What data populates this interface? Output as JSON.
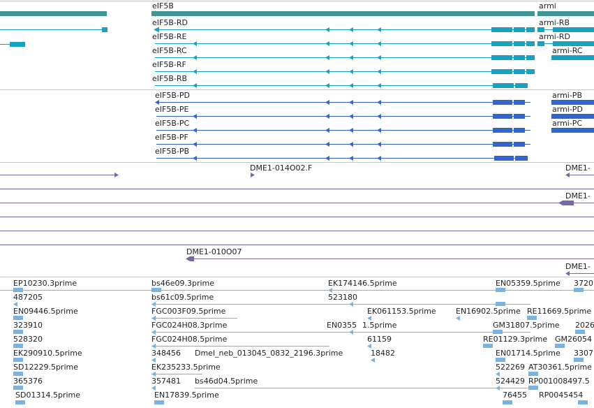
{
  "colors": {
    "gene": "#3d9595",
    "transcript": "#17a2c4",
    "protein": "#2f65cc",
    "est": "#7766aa",
    "cdna": "#7bb3e0",
    "label": "#222222",
    "divider": "#c7c7c7"
  },
  "genes": [
    {
      "label": "eIF5B"
    },
    {
      "label": "armi"
    }
  ],
  "transcripts": [
    {
      "label": "eIF5B-RD"
    },
    {
      "label": "eIF5B-RE"
    },
    {
      "label": "eIF5B-RC"
    },
    {
      "label": "eIF5B-RF"
    },
    {
      "label": "eIF5B-RB"
    },
    {
      "label": "armi-RB"
    },
    {
      "label": "armi-RD"
    },
    {
      "label": "armi-RC"
    }
  ],
  "proteins": [
    {
      "label": "eIF5B-PD"
    },
    {
      "label": "eIF5B-PE"
    },
    {
      "label": "eIF5B-PC"
    },
    {
      "label": "eIF5B-PF"
    },
    {
      "label": "eIF5B-PB"
    },
    {
      "label": "armi-PB"
    },
    {
      "label": "armi-PD"
    },
    {
      "label": "armi-PC"
    }
  ],
  "ests": [
    {
      "label": "DME1-014O02.F"
    },
    {
      "label": "DME1-"
    },
    {
      "label": "DME1-"
    },
    {
      "label": "DME1-010O07"
    },
    {
      "label": "DME1-"
    }
  ],
  "cdnas": [
    {
      "label": "EP10230.3prime"
    },
    {
      "label": "bs46e09.3prime"
    },
    {
      "label": "EK174146.5prime"
    },
    {
      "label": "EN05359.5prime"
    },
    {
      "label": "3720"
    },
    {
      "label": "487205"
    },
    {
      "label": "bs61c09.5prime"
    },
    {
      "label": "523180"
    },
    {
      "label": "EN09446.5prime"
    },
    {
      "label": "FGC003F09.5prime"
    },
    {
      "label": "EK061153.5prime"
    },
    {
      "label": "EN16902.5prime"
    },
    {
      "label": "RE11669.5prime"
    },
    {
      "label": "323910"
    },
    {
      "label": "FGC024H08.3prime"
    },
    {
      "label": "EN0355"
    },
    {
      "label": "1.5prime"
    },
    {
      "label": "GM31807.5prime"
    },
    {
      "label": "2026"
    },
    {
      "label": "528320"
    },
    {
      "label": "FGC024H08.5prime"
    },
    {
      "label": "61159"
    },
    {
      "label": "RE01129.3prime"
    },
    {
      "label": "GM26054"
    },
    {
      "label": "348456"
    },
    {
      "label": "Dmel_neb_013045_0832_2196.3prime"
    },
    {
      "label": "18482"
    },
    {
      "label": "EN01714.5prime"
    },
    {
      "label": "3307"
    },
    {
      "label": "EK290910.5prime"
    },
    {
      "label": "522269"
    },
    {
      "label": "AT30361.5prime"
    },
    {
      "label": "SD12229.5prime"
    },
    {
      "label": "EK235233.5prime"
    },
    {
      "label": "524429"
    },
    {
      "label": "RP001008497.5"
    },
    {
      "label": "365376"
    },
    {
      "label": "357481"
    },
    {
      "label": "bs46d04.5prime"
    },
    {
      "label": "SD01314.5prime"
    },
    {
      "label": "EN17839.5prime"
    },
    {
      "label": "76455"
    },
    {
      "label": "RP0045454"
    }
  ]
}
